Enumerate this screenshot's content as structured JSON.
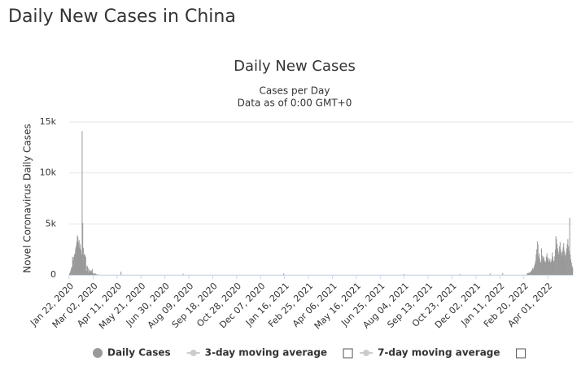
{
  "page_title": "Daily New Cases in China",
  "chart_data": {
    "type": "bar",
    "title": "Daily New Cases",
    "subtitle": [
      "Cases per Day",
      "Data as of 0:00 GMT+0"
    ],
    "y_label": "Novel Coronavirus Daily Cases",
    "xlim": [
      "2020-01-22",
      "2022-05-13"
    ],
    "xticks": [
      {
        "value": "2020-01-22",
        "label": "Jan 22, 2020"
      },
      {
        "value": "2020-03-02",
        "label": "Mar 02, 2020"
      },
      {
        "value": "2020-04-11",
        "label": "Apr 11, 2020"
      },
      {
        "value": "2020-05-21",
        "label": "May 21, 2020"
      },
      {
        "value": "2020-06-30",
        "label": "Jun 30, 2020"
      },
      {
        "value": "2020-08-09",
        "label": "Aug 09, 2020"
      },
      {
        "value": "2020-09-18",
        "label": "Sep 18, 2020"
      },
      {
        "value": "2020-10-28",
        "label": "Oct 28, 2020"
      },
      {
        "value": "2020-12-07",
        "label": "Dec 07, 2020"
      },
      {
        "value": "2021-01-16",
        "label": "Jan 16, 2021"
      },
      {
        "value": "2021-02-25",
        "label": "Feb 25, 2021"
      },
      {
        "value": "2021-04-06",
        "label": "Apr 06, 2021"
      },
      {
        "value": "2021-05-16",
        "label": "May 16, 2021"
      },
      {
        "value": "2021-06-25",
        "label": "Jun 25, 2021"
      },
      {
        "value": "2021-08-04",
        "label": "Aug 04, 2021"
      },
      {
        "value": "2021-09-13",
        "label": "Sep 13, 2021"
      },
      {
        "value": "2021-10-23",
        "label": "Oct 23, 2021"
      },
      {
        "value": "2021-12-02",
        "label": "Dec 02, 2021"
      },
      {
        "value": "2022-01-11",
        "label": "Jan 11, 2022"
      },
      {
        "value": "2022-02-20",
        "label": "Feb 20, 2022"
      },
      {
        "value": "2022-04-01",
        "label": "Apr 01, 2022"
      }
    ],
    "ylim": [
      0,
      15000
    ],
    "yticks": [
      0,
      {
        "value": 5000,
        "label": "5k"
      },
      {
        "value": 10000,
        "label": "10k"
      },
      {
        "value": 15000,
        "label": "15k"
      }
    ],
    "grid": true,
    "x": [
      "2020-01-22",
      "2020-01-23",
      "2020-01-24",
      "2020-01-25",
      "2020-01-26",
      "2020-01-27",
      "2020-01-28",
      "2020-01-29",
      "2020-01-30",
      "2020-01-31",
      "2020-02-01",
      "2020-02-02",
      "2020-02-03",
      "2020-02-04",
      "2020-02-05",
      "2020-02-06",
      "2020-02-07",
      "2020-02-08",
      "2020-02-09",
      "2020-02-10",
      "2020-02-11",
      "2020-02-12",
      "2020-02-13",
      "2020-02-14",
      "2020-02-15",
      "2020-02-16",
      "2020-02-17",
      "2020-02-18",
      "2020-02-19",
      "2020-02-20",
      "2020-02-21",
      "2020-02-22",
      "2020-02-23",
      "2020-02-24",
      "2020-02-25",
      "2020-02-26",
      "2020-02-27",
      "2020-02-28",
      "2020-02-29",
      "2020-03-01",
      "2020-03-02",
      "2020-03-03",
      "2020-03-04",
      "2020-03-05",
      "2020-03-06",
      "2020-03-07",
      "2020-03-08",
      "2020-03-09",
      "2020-03-10",
      "2020-04-17",
      "2020-07-30",
      "2021-01-14",
      "2021-08-03",
      "2021-11-05",
      "2021-12-25",
      "2022-01-15",
      "2022-02-25",
      "2022-02-26",
      "2022-02-27",
      "2022-02-28",
      "2022-03-01",
      "2022-03-02",
      "2022-03-03",
      "2022-03-04",
      "2022-03-05",
      "2022-03-06",
      "2022-03-07",
      "2022-03-08",
      "2022-03-09",
      "2022-03-10",
      "2022-03-11",
      "2022-03-12",
      "2022-03-13",
      "2022-03-14",
      "2022-03-15",
      "2022-03-16",
      "2022-03-17",
      "2022-03-18",
      "2022-03-19",
      "2022-03-20",
      "2022-03-21",
      "2022-03-22",
      "2022-03-23",
      "2022-03-24",
      "2022-03-25",
      "2022-03-26",
      "2022-03-27",
      "2022-03-28",
      "2022-03-29",
      "2022-03-30",
      "2022-03-31",
      "2022-04-01",
      "2022-04-02",
      "2022-04-03",
      "2022-04-04",
      "2022-04-05",
      "2022-04-06",
      "2022-04-07",
      "2022-04-08",
      "2022-04-09",
      "2022-04-10",
      "2022-04-11",
      "2022-04-12",
      "2022-04-13",
      "2022-04-14",
      "2022-04-15",
      "2022-04-16",
      "2022-04-17",
      "2022-04-18",
      "2022-04-19",
      "2022-04-20",
      "2022-04-21",
      "2022-04-22",
      "2022-04-23",
      "2022-04-24",
      "2022-04-25",
      "2022-04-26",
      "2022-04-27",
      "2022-04-28",
      "2022-04-29",
      "2022-04-30",
      "2022-05-01",
      "2022-05-02",
      "2022-05-03",
      "2022-05-04",
      "2022-05-05",
      "2022-05-06",
      "2022-05-07",
      "2022-05-08",
      "2022-05-09",
      "2022-05-10",
      "2022-05-11",
      "2022-05-12"
    ],
    "series": [
      {
        "name": "Daily Cases",
        "color": "#999999",
        "values": [
          140,
          260,
          450,
          690,
          770,
          1770,
          1460,
          1740,
          1980,
          2100,
          2590,
          2830,
          3240,
          3880,
          3700,
          3150,
          3400,
          2650,
          3000,
          2480,
          2020,
          14100,
          5090,
          2640,
          2010,
          2050,
          1890,
          1750,
          390,
          890,
          820,
          650,
          220,
          520,
          410,
          430,
          330,
          430,
          570,
          200,
          125,
          120,
          140,
          140,
          100,
          45,
          40,
          20,
          25,
          325,
          100,
          140,
          80,
          70,
          140,
          165,
          150,
          170,
          190,
          200,
          220,
          250,
          300,
          400,
          500,
          650,
          520,
          700,
          900,
          1100,
          1400,
          2000,
          2500,
          3300,
          3000,
          1800,
          2100,
          1600,
          1300,
          1200,
          2600,
          1900,
          1500,
          1800,
          1700,
          1300,
          1400,
          1200,
          1800,
          2100,
          1600,
          1700,
          1300,
          1400,
          1600,
          1200,
          1300,
          1500,
          2200,
          1800,
          1400,
          1300,
          1800,
          2500,
          3800,
          3500,
          3000,
          2600,
          2300,
          2000,
          2800,
          3200,
          2500,
          2200,
          1900,
          2300,
          2700,
          3100,
          2400,
          2000,
          1800,
          2200,
          2600,
          3000,
          3500,
          2800,
          2400,
          5600,
          2000,
          1500,
          1200,
          900,
          700
        ]
      }
    ],
    "inactive_legend": [
      "3-day moving average",
      "7-day moving average"
    ]
  }
}
